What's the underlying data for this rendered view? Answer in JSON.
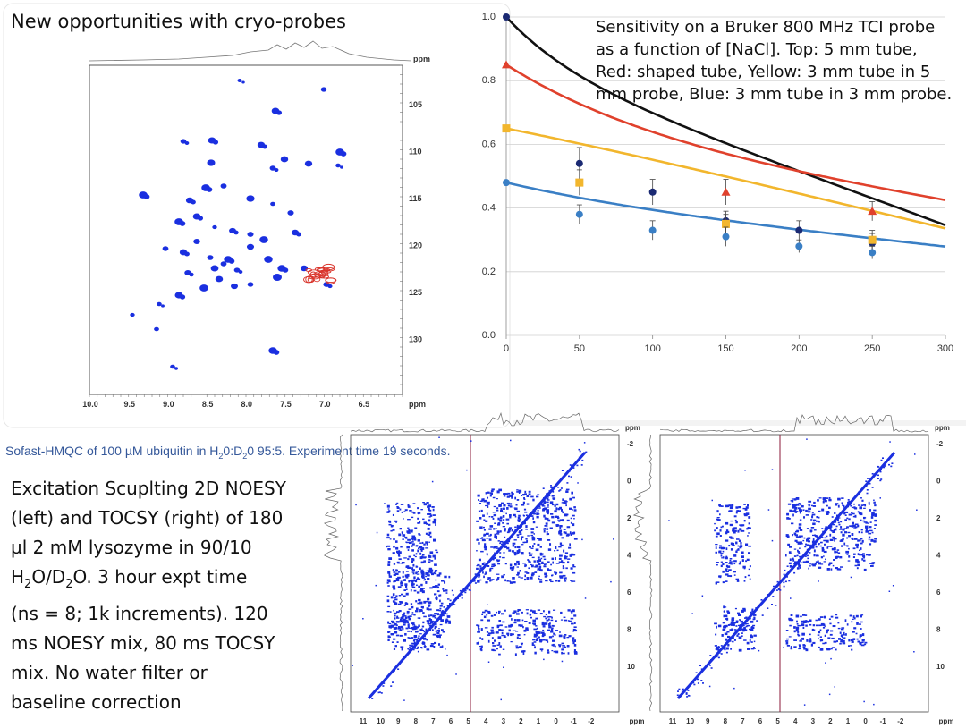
{
  "title": "New opportunities with cryo-probes",
  "sofast": {
    "caption_pre": "Sofast-HMQC of 100 µM ubiquitin in H",
    "caption_sub1": "2",
    "caption_mid": "0:D",
    "caption_sub2": "2",
    "caption_post": "0 95:5. Experiment time 19 seconds.",
    "x_ticks": [
      "10.0",
      "9.5",
      "9.0",
      "8.5",
      "8.0",
      "7.5",
      "7.0",
      "6.5"
    ],
    "x_unit": "ppm",
    "y_ticks": [
      "105",
      "110",
      "115",
      "120",
      "125",
      "130"
    ],
    "y_unit": "ppm"
  },
  "noesy_text": {
    "line1": "Excitation Scuplting 2D NOESY",
    "line2": "(left) and TOCSY (right) of 180",
    "line3": "µl 2 mM lysozyme in 90/10",
    "line4_pre": "H",
    "line4_sub1": "2",
    "line4_mid": "O/D",
    "line4_sub2": "2",
    "line4_post": "O. 3 hour expt time",
    "line5": "(ns = 8; 1k increments). 120",
    "line6": "ms NOESY mix, 80 ms TOCSY",
    "line7": "mix. No water filter or",
    "line8": "baseline correction"
  },
  "sensitivity_text": "Sensitivity on a Bruker 800 MHz TCI probe as a function of [NaCl]. Top: 5 mm tube, Red: shaped tube, Yellow: 3 mm tube in 5 mm probe, Blue: 3 mm tube in 3 mm probe.",
  "nmr2d": {
    "x_ticks": [
      "11",
      "10",
      "9",
      "8",
      "7",
      "6",
      "5",
      "4",
      "3",
      "2",
      "1",
      "0",
      "-1",
      "-2"
    ],
    "x_unit": "ppm",
    "y_ticks": [
      "-2",
      "0",
      "2",
      "4",
      "6",
      "8",
      "10"
    ],
    "y_unit": "ppm"
  },
  "colors": {
    "blue_peaks": "#1a2fe0",
    "red_peaks": "#d9342b",
    "caption": "#35589a"
  },
  "chart_data": {
    "type": "scatter",
    "title": "",
    "xlabel": "",
    "ylabel": "",
    "xlim": [
      0,
      300
    ],
    "ylim": [
      0,
      1.0
    ],
    "x_ticks": [
      0,
      50,
      100,
      150,
      200,
      250,
      300
    ],
    "y_ticks": [
      0.0,
      0.2,
      0.4,
      0.6,
      0.8,
      1.0
    ],
    "y_tick_labels": [
      "0.0",
      "0.2",
      "0.4",
      "0.6",
      "0.8",
      "1.0"
    ],
    "grid": true,
    "series": [
      {
        "name": "Top: 5 mm tube",
        "color": "#111111",
        "marker_color": "#1b2a73",
        "x": [
          0,
          50,
          100,
          150,
          200,
          250
        ],
        "y": [
          1.0,
          0.54,
          0.45,
          0.36,
          0.33,
          0.29
        ],
        "err": [
          0.0,
          0.05,
          0.04,
          0.03,
          0.03,
          0.03
        ],
        "fit_a": 1.0,
        "fit_k": 0.022,
        "fit_p": 0.85
      },
      {
        "name": "Red: shaped tube",
        "color": "#e0412c",
        "marker_color": "#e0412c",
        "x": [
          0,
          150,
          250
        ],
        "y": [
          0.85,
          0.45,
          0.39
        ],
        "err": [
          0.0,
          0.04,
          0.03
        ],
        "fit_a": 0.85,
        "fit_k": 0.01,
        "fit_p": 0.63
      },
      {
        "name": "Yellow: 3 mm tube in 5 mm probe",
        "color": "#f2b62d",
        "marker_color": "#f2b62d",
        "x": [
          0,
          50,
          150,
          250
        ],
        "y": [
          0.65,
          0.48,
          0.35,
          0.3
        ],
        "err": [
          0.0,
          0.04,
          0.03,
          0.03
        ],
        "fit_a": 0.65,
        "fit_k": 0.01,
        "fit_p": 0.67
      },
      {
        "name": "Blue: 3 mm tube in 3 mm probe",
        "color": "#3a7fc5",
        "marker_color": "#3a7fc5",
        "x": [
          0,
          50,
          100,
          150,
          200,
          250
        ],
        "y": [
          0.48,
          0.38,
          0.33,
          0.31,
          0.28,
          0.26
        ],
        "err": [
          0.0,
          0.03,
          0.03,
          0.03,
          0.02,
          0.02
        ],
        "fit_a": 0.48,
        "fit_k": 0.01,
        "fit_p": 0.42
      }
    ]
  }
}
